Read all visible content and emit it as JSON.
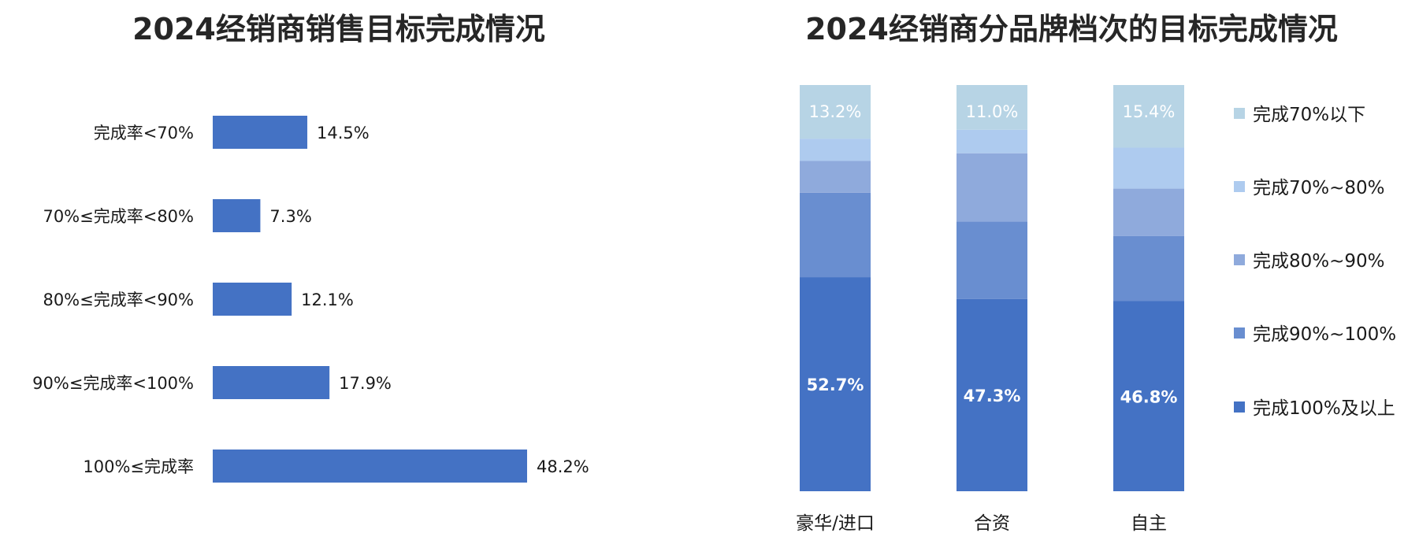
{
  "colors": {
    "bar": "#4472c4",
    "s100plus": "#4472c4",
    "s90_100": "#698ed0",
    "s80_90": "#8faadc",
    "s70_80": "#aecbef",
    "s70below": "#b7d4e5"
  },
  "chart_data": [
    {
      "type": "bar",
      "orientation": "horizontal",
      "title": "2024经销商销售目标完成情况",
      "categories": [
        "完成率<70%",
        "70%≤完成率<80%",
        "80%≤完成率<90%",
        "90%≤完成率<100%",
        "100%≤完成率"
      ],
      "values": [
        14.5,
        7.3,
        12.1,
        17.9,
        48.2
      ],
      "value_labels": [
        "14.5%",
        "7.3%",
        "12.1%",
        "17.9%",
        "48.2%"
      ],
      "xlim": [
        0,
        60
      ],
      "grid": false
    },
    {
      "type": "bar",
      "stacked": true,
      "title": "2024经销商分品牌档次的目标完成情况",
      "categories": [
        "豪华/进口",
        "合资",
        "自主"
      ],
      "series": [
        {
          "name": "完成100%及以上",
          "values": [
            52.7,
            47.3,
            46.8
          ],
          "labels": [
            "52.7%",
            "47.3%",
            "46.8%"
          ]
        },
        {
          "name": "完成90%~100%",
          "values": [
            20.8,
            19.1,
            16.0
          ],
          "labels": [
            "",
            "",
            ""
          ]
        },
        {
          "name": "完成80%~90%",
          "values": [
            7.8,
            16.8,
            11.7
          ],
          "labels": [
            "",
            "",
            ""
          ]
        },
        {
          "name": "完成70%~80%",
          "values": [
            5.5,
            5.8,
            10.1
          ],
          "labels": [
            "",
            "",
            ""
          ]
        },
        {
          "name": "完成70%以下",
          "values": [
            13.2,
            11.0,
            15.4
          ],
          "labels": [
            "13.2%",
            "11.0%",
            "15.4%"
          ]
        }
      ],
      "ylim": [
        0,
        100
      ],
      "legend_position": "right",
      "legend_order": [
        "完成70%以下",
        "完成70%~80%",
        "完成80%~90%",
        "完成90%~100%",
        "完成100%及以上"
      ],
      "grid": false
    }
  ]
}
